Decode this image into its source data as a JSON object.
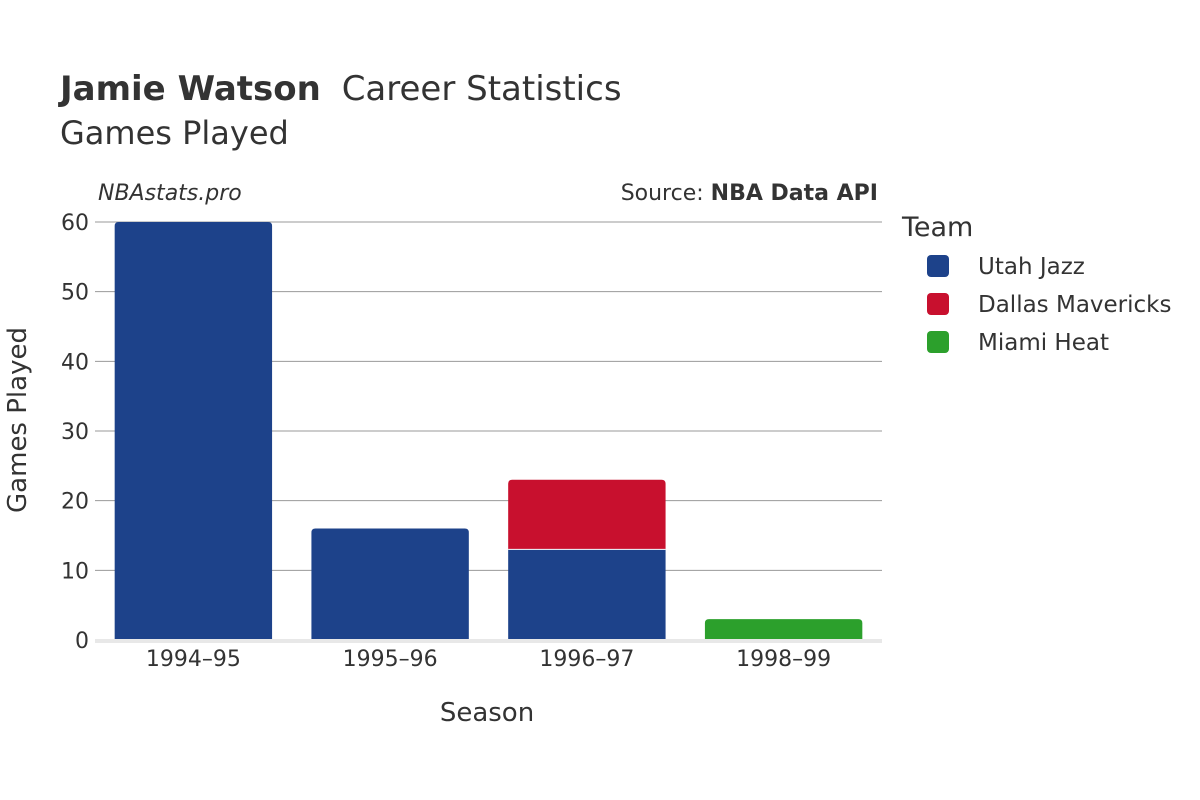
{
  "header": {
    "player_name": "Jamie Watson",
    "title_suffix": "Career Statistics",
    "subtitle": "Games Played",
    "watermark": "NBAstats.pro",
    "source_prefix": "Source: ",
    "source_name": "NBA Data API"
  },
  "legend": {
    "title": "Team",
    "placement": "right"
  },
  "colors": {
    "Utah Jazz": "#1d428a",
    "Dallas Mavericks": "#c8102e",
    "Miami Heat": "#2ca02c",
    "grid": "#999999",
    "text": "#333333"
  },
  "chart_data": {
    "type": "bar",
    "stacked": true,
    "categories": [
      "1994–95",
      "1995–96",
      "1996–97",
      "1998–99"
    ],
    "series": [
      {
        "name": "Utah Jazz",
        "values": [
          60,
          16,
          13,
          0
        ]
      },
      {
        "name": "Dallas Mavericks",
        "values": [
          0,
          0,
          10,
          0
        ]
      },
      {
        "name": "Miami Heat",
        "values": [
          0,
          0,
          0,
          3
        ]
      }
    ],
    "xlabel": "Season",
    "ylabel": "Games Played",
    "ylim": [
      0,
      60
    ],
    "yticks": [
      0,
      10,
      20,
      30,
      40,
      50,
      60
    ],
    "grid": true
  }
}
